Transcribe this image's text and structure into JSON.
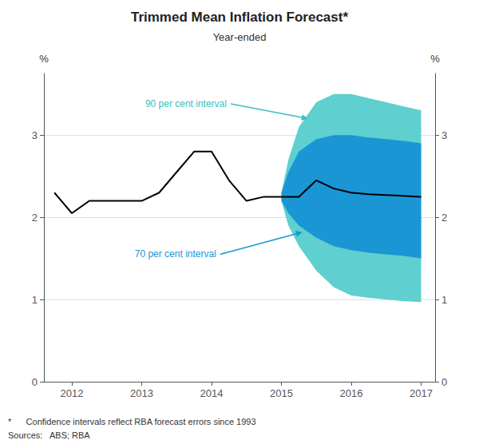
{
  "chart_data": {
    "type": "line",
    "title": "Trimmed Mean Inflation Forecast*",
    "subtitle": "Year-ended",
    "ylabel": "%",
    "y2label": "%",
    "footnotes": [
      "*      Confidence intervals reflect RBA forecast errors since 1993",
      "Sources:   ABS; RBA"
    ],
    "xlim": [
      2011.6,
      2017.2
    ],
    "xticks": [
      2012,
      2013,
      2014,
      2015,
      2016,
      2017
    ],
    "ylim": [
      0,
      3.75
    ],
    "yticks": [
      0,
      1,
      2,
      3
    ],
    "y2lim": [
      0,
      3.75
    ],
    "y2ticks": [
      0,
      1,
      2,
      3
    ],
    "grid": true,
    "series": [
      {
        "type": "band",
        "color": "#5fcfcf",
        "x": [
          2015.0,
          2015.1,
          2015.25,
          2015.5,
          2015.75,
          2016.0,
          2016.25,
          2016.5,
          2016.75,
          2017.0
        ],
        "upper": [
          2.3,
          2.7,
          3.1,
          3.4,
          3.5,
          3.5,
          3.45,
          3.4,
          3.35,
          3.3
        ],
        "lower": [
          2.2,
          1.9,
          1.65,
          1.35,
          1.15,
          1.05,
          1.02,
          1.0,
          0.98,
          0.97
        ]
      },
      {
        "type": "band",
        "color": "#1a96d4",
        "x": [
          2015.0,
          2015.1,
          2015.25,
          2015.5,
          2015.75,
          2016.0,
          2016.25,
          2016.5,
          2016.75,
          2017.0
        ],
        "upper": [
          2.3,
          2.55,
          2.8,
          2.95,
          3.0,
          3.0,
          2.97,
          2.95,
          2.93,
          2.9
        ],
        "lower": [
          2.2,
          2.05,
          1.9,
          1.75,
          1.65,
          1.6,
          1.57,
          1.55,
          1.53,
          1.5
        ]
      },
      {
        "type": "line",
        "color": "#000000",
        "x": [
          2011.75,
          2012.0,
          2012.25,
          2012.5,
          2012.75,
          2013.0,
          2013.25,
          2013.5,
          2013.75,
          2014.0,
          2014.25,
          2014.5,
          2014.75,
          2015.0
        ],
        "values": [
          2.3,
          2.05,
          2.2,
          2.2,
          2.2,
          2.2,
          2.3,
          2.55,
          2.8,
          2.8,
          2.45,
          2.2,
          2.25,
          2.25
        ]
      },
      {
        "type": "line",
        "color": "#000000",
        "x": [
          2015.0,
          2015.25,
          2015.5,
          2015.75,
          2016.0,
          2016.25,
          2016.5,
          2016.75,
          2017.0
        ],
        "values": [
          2.25,
          2.25,
          2.45,
          2.35,
          2.3,
          2.28,
          2.27,
          2.26,
          2.25
        ]
      }
    ],
    "annotations": [
      {
        "text": "90 per cent interval",
        "color": "#3bbfbf",
        "x": 2015.38,
        "y": 3.2,
        "text_x": 2013.05,
        "text_y": 3.38
      },
      {
        "text": "70 per cent interval",
        "color": "#1a96d4",
        "x": 2015.3,
        "y": 1.82,
        "text_x": 2012.9,
        "text_y": 1.55
      }
    ]
  }
}
